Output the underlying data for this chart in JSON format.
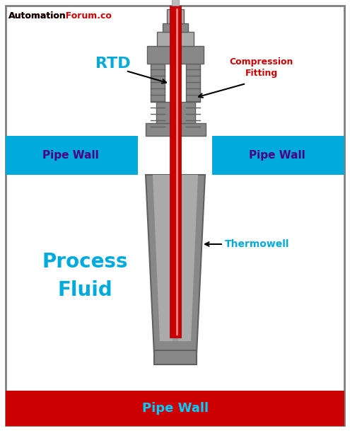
{
  "fig_width": 4.95,
  "fig_height": 6.09,
  "dpi": 100,
  "bg_color": "#ffffff",
  "border_color": "#808080",
  "pipe_wall_color": "#00aadd",
  "pipe_wall_bottom_color": "#cc0000",
  "pipe_wall_text_color": "#4b0082",
  "process_fluid_text_color": "#00aadd",
  "gray_dark": "#606060",
  "gray_mid": "#888888",
  "gray_light": "#aaaaaa",
  "gray_inner": "#c8c8c8",
  "rtd_color": "#cc0000",
  "rtd_label_color": "#00aadd",
  "compression_label_color": "#cc0000",
  "thermowell_label_color": "#00aadd",
  "site_text": "AutomationForum.co",
  "rtd_label": "RTD",
  "compression_label": "Compression\nFitting",
  "thermowell_label": "Thermowell",
  "process_fluid_label": "Process\nFluid",
  "pipe_wall_label": "Pipe Wall",
  "pipe_wall_bottom_label": "Pipe Wall"
}
